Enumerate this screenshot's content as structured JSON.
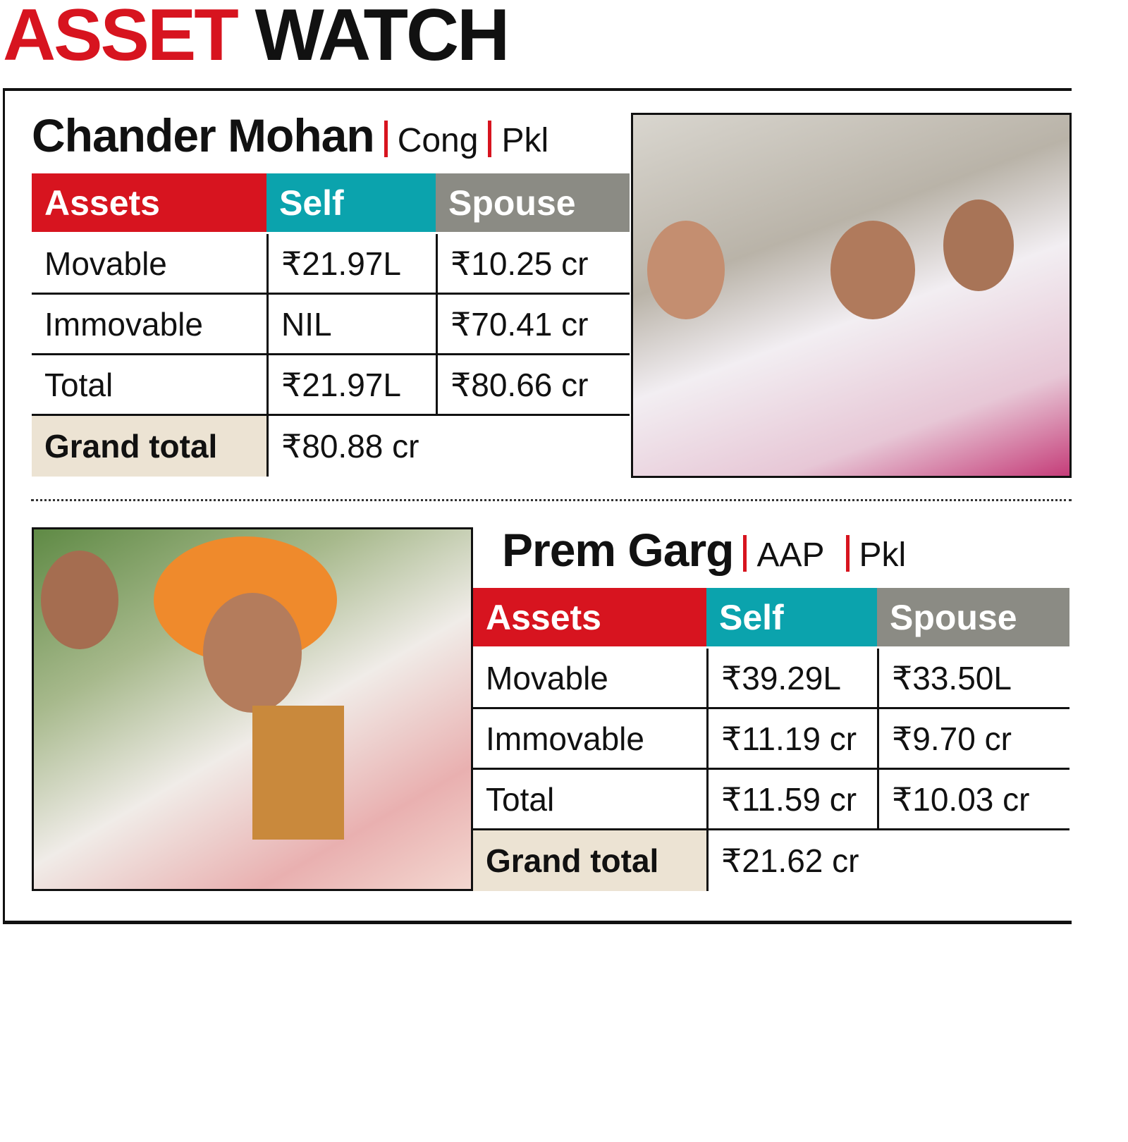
{
  "header": {
    "title_red": "ASSET",
    "title_black": "WATCH"
  },
  "candidates": [
    {
      "name": "Chander Mohan",
      "party": "Cong",
      "place": "Pkl",
      "table": {
        "header": [
          "Assets",
          "Self",
          "Spouse"
        ],
        "rows": [
          [
            "Movable",
            "₹21.97L",
            "₹10.25 cr"
          ],
          [
            "Immovable",
            "NIL",
            "₹70.41 cr"
          ],
          [
            "Total",
            "₹21.97L",
            "₹80.66 cr"
          ]
        ],
        "grand_total": {
          "label": "Grand total",
          "value": "₹80.88 cr"
        }
      }
    },
    {
      "name": "Prem Garg",
      "party": "AAP",
      "place": "Pkl",
      "table": {
        "header": [
          "Assets",
          "Self",
          "Spouse"
        ],
        "rows": [
          [
            "Movable",
            "₹39.29L",
            "₹33.50L"
          ],
          [
            "Immovable",
            "₹11.19 cr",
            "₹9.70 cr"
          ],
          [
            "Total",
            "₹11.59 cr",
            "₹10.03 cr"
          ]
        ],
        "grand_total": {
          "label": "Grand total",
          "value": "₹21.62 cr"
        }
      }
    }
  ]
}
